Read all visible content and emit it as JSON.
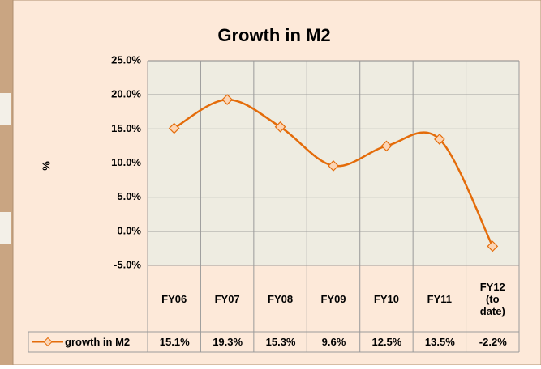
{
  "chart_data": {
    "type": "line",
    "title": "Growth in M2",
    "y_label": "%",
    "categories": [
      "FY06",
      "FY07",
      "FY08",
      "FY09",
      "FY10",
      "FY11",
      "FY12 (to date)"
    ],
    "series": [
      {
        "name": "growth in M2",
        "color": "#e46c0a",
        "values": [
          15.1,
          19.3,
          15.3,
          9.6,
          12.5,
          13.5,
          -2.2
        ],
        "value_labels": [
          "15.1%",
          "19.3%",
          "15.3%",
          "9.6%",
          "12.5%",
          "13.5%",
          "-2.2%"
        ]
      }
    ],
    "ylim": [
      -5,
      25
    ],
    "yticks": [
      {
        "value": -5,
        "label": "-5.0%"
      },
      {
        "value": 0,
        "label": "0.0%"
      },
      {
        "value": 5,
        "label": "5.0%"
      },
      {
        "value": 10,
        "label": "10.0%"
      },
      {
        "value": 15,
        "label": "15.0%"
      },
      {
        "value": 20,
        "label": "20.0%"
      },
      {
        "value": 25,
        "label": "25.0%"
      }
    ],
    "grid": true,
    "smooth": true
  }
}
